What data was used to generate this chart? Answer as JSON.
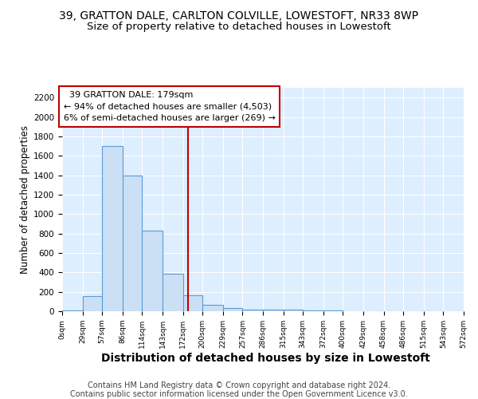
{
  "title": "39, GRATTON DALE, CARLTON COLVILLE, LOWESTOFT, NR33 8WP",
  "subtitle": "Size of property relative to detached houses in Lowestoft",
  "xlabel": "Distribution of detached houses by size in Lowestoft",
  "ylabel": "Number of detached properties",
  "footer_line1": "Contains HM Land Registry data © Crown copyright and database right 2024.",
  "footer_line2": "Contains public sector information licensed under the Open Government Licence v3.0.",
  "bar_edges": [
    0,
    29,
    57,
    86,
    114,
    143,
    172,
    200,
    229,
    257,
    286,
    315,
    343,
    372,
    400,
    429,
    458,
    486,
    515,
    543,
    572
  ],
  "bar_heights": [
    10,
    155,
    1700,
    1400,
    830,
    390,
    165,
    65,
    30,
    20,
    20,
    15,
    10,
    5,
    0,
    0,
    0,
    0,
    0,
    0
  ],
  "bar_color": "#cce0f5",
  "bar_edge_color": "#5b9bd5",
  "vline_x": 179,
  "vline_color": "#c00000",
  "annotation_text": "  39 GRATTON DALE: 179sqm  \n← 94% of detached houses are smaller (4,503)\n6% of semi-detached houses are larger (269) →",
  "annotation_box_color": "#ffffff",
  "annotation_box_edgecolor": "#c00000",
  "ylim": [
    0,
    2300
  ],
  "tick_labels": [
    "0sqm",
    "29sqm",
    "57sqm",
    "86sqm",
    "114sqm",
    "143sqm",
    "172sqm",
    "200sqm",
    "229sqm",
    "257sqm",
    "286sqm",
    "315sqm",
    "343sqm",
    "372sqm",
    "400sqm",
    "429sqm",
    "458sqm",
    "486sqm",
    "515sqm",
    "543sqm",
    "572sqm"
  ],
  "background_color": "#ddeeff",
  "title_fontsize": 10,
  "subtitle_fontsize": 9.5,
  "xlabel_fontsize": 10,
  "ylabel_fontsize": 8.5,
  "footer_fontsize": 7,
  "yticks": [
    0,
    200,
    400,
    600,
    800,
    1000,
    1200,
    1400,
    1600,
    1800,
    2000,
    2200
  ]
}
